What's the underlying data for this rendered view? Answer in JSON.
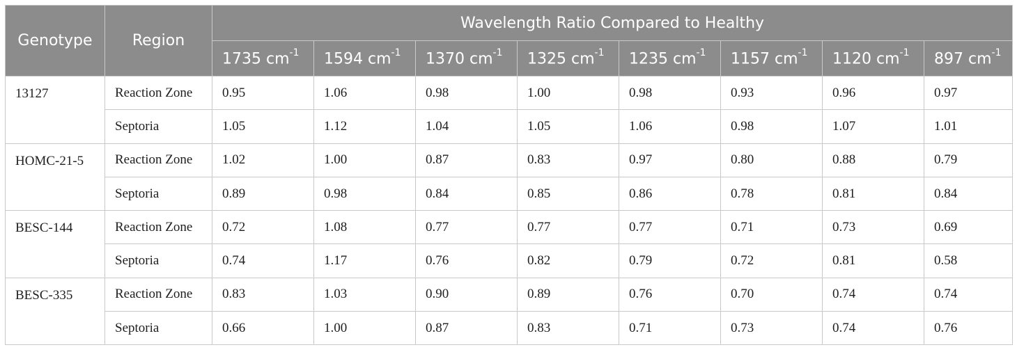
{
  "header": {
    "genotype": "Genotype",
    "region": "Region",
    "group": "Wavelength Ratio Compared to Healthy",
    "columns": [
      {
        "value": "1735 cm",
        "exp": "-1"
      },
      {
        "value": "1594 cm",
        "exp": "-1"
      },
      {
        "value": "1370 cm",
        "exp": "-1"
      },
      {
        "value": "1325 cm",
        "exp": "-1"
      },
      {
        "value": "1235 cm",
        "exp": "-1"
      },
      {
        "value": "1157 cm",
        "exp": "-1"
      },
      {
        "value": "1120 cm",
        "exp": "-1"
      },
      {
        "value": "897 cm",
        "exp": "-1"
      }
    ]
  },
  "rows": [
    {
      "genotype": "13127",
      "regions": [
        {
          "region": "Reaction Zone",
          "values": [
            "0.95",
            "1.06",
            "0.98",
            "1.00",
            "0.98",
            "0.93",
            "0.96",
            "0.97"
          ]
        },
        {
          "region": "Septoria",
          "values": [
            "1.05",
            "1.12",
            "1.04",
            "1.05",
            "1.06",
            "0.98",
            "1.07",
            "1.01"
          ]
        }
      ]
    },
    {
      "genotype": "HOMC-21-5",
      "regions": [
        {
          "region": "Reaction Zone",
          "values": [
            "1.02",
            "1.00",
            "0.87",
            "0.83",
            "0.97",
            "0.80",
            "0.88",
            "0.79"
          ]
        },
        {
          "region": "Septoria",
          "values": [
            "0.89",
            "0.98",
            "0.84",
            "0.85",
            "0.86",
            "0.78",
            "0.81",
            "0.84"
          ]
        }
      ]
    },
    {
      "genotype": "BESC-144",
      "regions": [
        {
          "region": "Reaction Zone",
          "values": [
            "0.72",
            "1.08",
            "0.77",
            "0.77",
            "0.77",
            "0.71",
            "0.73",
            "0.69"
          ]
        },
        {
          "region": "Septoria",
          "values": [
            "0.74",
            "1.17",
            "0.76",
            "0.82",
            "0.79",
            "0.72",
            "0.81",
            "0.58"
          ]
        }
      ]
    },
    {
      "genotype": "BESC-335",
      "regions": [
        {
          "region": "Reaction Zone",
          "values": [
            "0.83",
            "1.03",
            "0.90",
            "0.89",
            "0.76",
            "0.70",
            "0.74",
            "0.74"
          ]
        },
        {
          "region": "Septoria",
          "values": [
            "0.66",
            "1.00",
            "0.87",
            "0.83",
            "0.71",
            "0.73",
            "0.74",
            "0.76"
          ]
        }
      ]
    }
  ]
}
